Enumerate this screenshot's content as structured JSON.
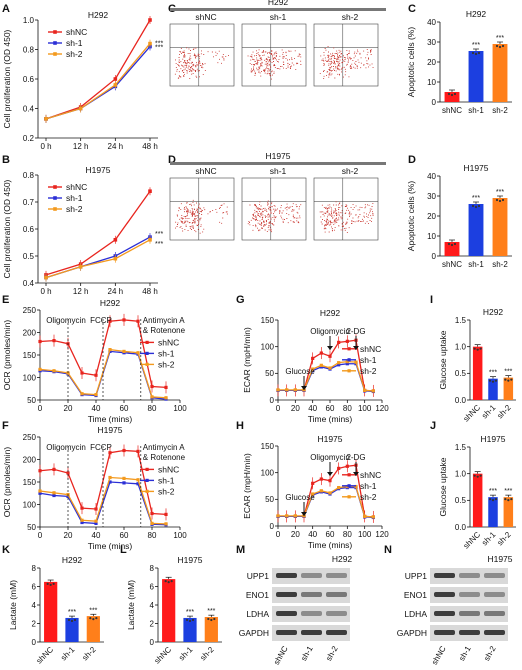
{
  "colors": {
    "shNC": "#e8251f",
    "sh1": "#2b2fd6",
    "sh2": "#f39a1e",
    "bar_nc": "#ff1a1a",
    "bar_sh1": "#1c3fe0",
    "bar_sh2": "#ff7f1a"
  },
  "group_labels": [
    "shNC",
    "sh-1",
    "sh-2"
  ],
  "sig": "***",
  "chart_data": [
    {
      "id": "A",
      "type": "line",
      "title": "H292",
      "ylabel": "Cell proliferation (OD 450)",
      "categories": [
        "0 h",
        "12 h",
        "24 h",
        "48 h"
      ],
      "ylim": [
        0.2,
        1.0
      ],
      "yticks": [
        "0.2",
        "0.4",
        "0.6",
        "0.8",
        "1.0"
      ],
      "series": [
        {
          "name": "shNC",
          "values": [
            0.33,
            0.41,
            0.6,
            1.0
          ]
        },
        {
          "name": "sh-1",
          "values": [
            0.33,
            0.4,
            0.55,
            0.82
          ]
        },
        {
          "name": "sh-2",
          "values": [
            0.33,
            0.4,
            0.56,
            0.84
          ]
        }
      ]
    },
    {
      "id": "B",
      "type": "line",
      "title": "H1975",
      "ylabel": "Cell proliferation (OD 450)",
      "categories": [
        "0 h",
        "12 h",
        "24 h",
        "48 h"
      ],
      "ylim": [
        0.4,
        0.8
      ],
      "yticks": [
        "0.4",
        "0.5",
        "0.6",
        "0.7",
        "0.8"
      ],
      "series": [
        {
          "name": "shNC",
          "values": [
            0.43,
            0.47,
            0.56,
            0.74
          ]
        },
        {
          "name": "sh-1",
          "values": [
            0.42,
            0.46,
            0.5,
            0.57
          ]
        },
        {
          "name": "sh-2",
          "values": [
            0.42,
            0.46,
            0.49,
            0.56
          ]
        }
      ]
    },
    {
      "id": "C",
      "type": "bar",
      "title": "H292",
      "ylabel": "Apoptotic cells (%)",
      "categories": [
        "shNC",
        "sh-1",
        "sh-2"
      ],
      "values": [
        5,
        25.5,
        29
      ],
      "ylim": [
        0,
        40
      ],
      "yticks": [
        "0",
        "10",
        "20",
        "30",
        "40"
      ]
    },
    {
      "id": "D",
      "type": "bar",
      "title": "H1975",
      "ylabel": "Apoptotic cells (%)",
      "categories": [
        "shNC",
        "sh-1",
        "sh-2"
      ],
      "values": [
        7,
        26,
        29
      ],
      "ylim": [
        0,
        40
      ],
      "yticks": [
        "0",
        "10",
        "20",
        "30",
        "40"
      ]
    },
    {
      "id": "E",
      "type": "line",
      "title": "H292",
      "ylabel": "OCR (pmoles/min)",
      "xlabel": "Time (mins)",
      "x": [
        0,
        10,
        20,
        30,
        40,
        50,
        60,
        70,
        80,
        90
      ],
      "xlim": [
        0,
        100
      ],
      "xticks": [
        "0",
        "20",
        "40",
        "60",
        "80",
        "100"
      ],
      "ylim": [
        50,
        250
      ],
      "yticks": [
        "50",
        "100",
        "150",
        "200",
        "250"
      ],
      "series": [
        {
          "name": "shNC",
          "values": [
            180,
            182,
            175,
            110,
            105,
            225,
            228,
            225,
            80,
            78
          ]
        },
        {
          "name": "sh-1",
          "values": [
            115,
            113,
            108,
            62,
            60,
            158,
            155,
            152,
            55,
            52
          ]
        },
        {
          "name": "sh-2",
          "values": [
            118,
            115,
            110,
            64,
            62,
            162,
            158,
            155,
            57,
            55
          ]
        }
      ]
    },
    {
      "id": "F",
      "type": "line",
      "title": "H1975",
      "ylabel": "OCR (pmoles/min)",
      "xlabel": "Time (mins)",
      "x": [
        0,
        10,
        20,
        30,
        40,
        50,
        60,
        70,
        80,
        90
      ],
      "xlim": [
        0,
        100
      ],
      "xticks": [
        "0",
        "20",
        "40",
        "60",
        "80",
        "100"
      ],
      "ylim": [
        50,
        250
      ],
      "yticks": [
        "50",
        "100",
        "150",
        "200",
        "250"
      ],
      "series": [
        {
          "name": "shNC",
          "values": [
            175,
            178,
            170,
            92,
            90,
            215,
            220,
            218,
            80,
            78
          ]
        },
        {
          "name": "sh-1",
          "values": [
            125,
            120,
            118,
            60,
            58,
            150,
            148,
            146,
            56,
            55
          ]
        },
        {
          "name": "sh-2",
          "values": [
            130,
            126,
            122,
            65,
            63,
            160,
            158,
            155,
            58,
            57
          ]
        }
      ]
    },
    {
      "id": "G",
      "type": "line",
      "title": "H292",
      "ylabel": "ECAR (mpH/min)",
      "xlabel": "Time (mins)",
      "x": [
        0,
        10,
        20,
        30,
        40,
        50,
        60,
        70,
        80,
        90,
        100,
        110
      ],
      "xlim": [
        0,
        120
      ],
      "xticks": [
        "0",
        "20",
        "40",
        "60",
        "80",
        "100",
        "120"
      ],
      "ylim": [
        0,
        150
      ],
      "yticks": [
        "0",
        "50",
        "100",
        "150"
      ],
      "series": [
        {
          "name": "shNC",
          "values": [
            18,
            18,
            18,
            18,
            78,
            88,
            82,
            108,
            110,
            112,
            18,
            17
          ]
        },
        {
          "name": "sh-1",
          "values": [
            18,
            18,
            18,
            18,
            55,
            62,
            58,
            66,
            68,
            68,
            17,
            16
          ]
        },
        {
          "name": "sh-2",
          "values": [
            19,
            19,
            19,
            19,
            58,
            65,
            60,
            70,
            72,
            71,
            18,
            17
          ]
        }
      ]
    },
    {
      "id": "H",
      "type": "line",
      "title": "H1975",
      "ylabel": "ECAR (mpH/min)",
      "xlabel": "Time (mins)",
      "x": [
        0,
        10,
        20,
        30,
        40,
        50,
        60,
        70,
        80,
        90,
        100,
        110
      ],
      "xlim": [
        0,
        120
      ],
      "xticks": [
        "0",
        "20",
        "40",
        "60",
        "80",
        "100",
        "120"
      ],
      "ylim": [
        0,
        150
      ],
      "yticks": [
        "0",
        "50",
        "100",
        "150"
      ],
      "series": [
        {
          "name": "shNC",
          "values": [
            18,
            18,
            18,
            18,
            80,
            88,
            85,
            108,
            112,
            114,
            18,
            17
          ]
        },
        {
          "name": "sh-1",
          "values": [
            18,
            18,
            18,
            18,
            58,
            64,
            60,
            70,
            72,
            72,
            17,
            16
          ]
        },
        {
          "name": "sh-2",
          "values": [
            19,
            19,
            19,
            19,
            60,
            66,
            62,
            72,
            74,
            74,
            18,
            17
          ]
        }
      ]
    },
    {
      "id": "I",
      "type": "bar",
      "title": "H292",
      "ylabel": "Glucose uptake",
      "categories": [
        "shNC",
        "sh-1",
        "sh-2"
      ],
      "values": [
        1.0,
        0.4,
        0.42
      ],
      "ylim": [
        0,
        1.5
      ],
      "yticks": [
        "0.0",
        "0.5",
        "1.0",
        "1.5"
      ]
    },
    {
      "id": "J",
      "type": "bar",
      "title": "H1975",
      "ylabel": "Glucose uptake",
      "categories": [
        "shNC",
        "sh-1",
        "sh-2"
      ],
      "values": [
        1.0,
        0.56,
        0.56
      ],
      "ylim": [
        0,
        1.5
      ],
      "yticks": [
        "0.0",
        "0.5",
        "1.0",
        "1.5"
      ]
    },
    {
      "id": "K",
      "type": "bar",
      "title": "H292",
      "ylabel": "Lactate (mM)",
      "categories": [
        "shNC",
        "sh-1",
        "sh-2"
      ],
      "values": [
        6.5,
        2.6,
        2.8
      ],
      "ylim": [
        0,
        8
      ],
      "yticks": [
        "0",
        "2",
        "4",
        "6",
        "8"
      ]
    },
    {
      "id": "L",
      "type": "bar",
      "title": "H1975",
      "ylabel": "Lactate (mM)",
      "categories": [
        "shNC",
        "sh-1",
        "sh-2"
      ],
      "values": [
        6.8,
        2.6,
        2.7
      ],
      "ylim": [
        0,
        8
      ],
      "yticks": [
        "0",
        "2",
        "4",
        "6",
        "8"
      ]
    }
  ],
  "annotations": {
    "E": [
      "Oligomycin",
      "FCCP",
      "Antimycin A",
      "& Rotenone"
    ],
    "F": [
      "Oligomycin",
      "FCCP",
      "Antimycin A",
      "& Rotenone"
    ],
    "G": [
      "Glucose",
      "Oligomycin",
      "2-DG"
    ],
    "H": [
      "Glucose",
      "Oligomycin",
      "2-DG"
    ]
  },
  "flow": {
    "C": {
      "title": "H292",
      "samples": [
        "shNC",
        "sh-1",
        "sh-2"
      ]
    },
    "D": {
      "title": "H1975",
      "samples": [
        "shNC",
        "sh-1",
        "sh-2"
      ]
    }
  },
  "blots": {
    "M": {
      "title": "H292",
      "proteins": [
        "UPP1",
        "ENO1",
        "LDHA",
        "GAPDH"
      ],
      "lanes": [
        "shNC",
        "sh-1",
        "sh-2"
      ],
      "intensity": [
        [
          0.9,
          0.5,
          0.5
        ],
        [
          0.9,
          0.6,
          0.6
        ],
        [
          0.9,
          0.5,
          0.5
        ],
        [
          0.9,
          0.9,
          0.9
        ]
      ]
    },
    "N": {
      "title": "H1975",
      "proteins": [
        "UPP1",
        "ENO1",
        "LDHA",
        "GAPDH"
      ],
      "lanes": [
        "shNC",
        "sh-1",
        "sh-2"
      ],
      "intensity": [
        [
          0.9,
          0.5,
          0.5
        ],
        [
          0.9,
          0.5,
          0.5
        ],
        [
          0.9,
          0.6,
          0.6
        ],
        [
          0.9,
          0.9,
          0.9
        ]
      ]
    }
  }
}
